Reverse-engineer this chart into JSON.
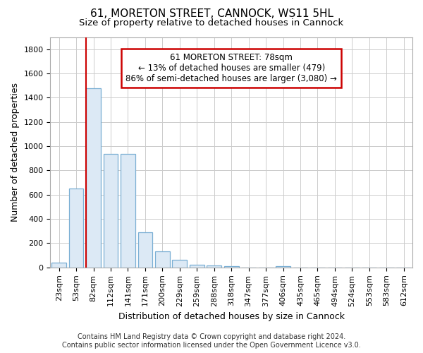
{
  "title_line1": "61, MORETON STREET, CANNOCK, WS11 5HL",
  "title_line2": "Size of property relative to detached houses in Cannock",
  "xlabel": "Distribution of detached houses by size in Cannock",
  "ylabel": "Number of detached properties",
  "bar_labels": [
    "23sqm",
    "53sqm",
    "82sqm",
    "112sqm",
    "141sqm",
    "171sqm",
    "200sqm",
    "229sqm",
    "259sqm",
    "288sqm",
    "318sqm",
    "347sqm",
    "377sqm",
    "406sqm",
    "435sqm",
    "465sqm",
    "494sqm",
    "524sqm",
    "553sqm",
    "583sqm",
    "612sqm"
  ],
  "bar_values": [
    40,
    652,
    1475,
    935,
    935,
    290,
    130,
    63,
    25,
    18,
    10,
    0,
    0,
    12,
    0,
    0,
    0,
    0,
    0,
    0,
    0
  ],
  "bar_color": "#dce9f5",
  "bar_edge_color": "#7aafd4",
  "vline_index": 2,
  "vline_color": "#cc0000",
  "annotation_line1": "61 MORETON STREET: 78sqm",
  "annotation_line2": "← 13% of detached houses are smaller (479)",
  "annotation_line3": "86% of semi-detached houses are larger (3,080) →",
  "annotation_box_color": "#ffffff",
  "annotation_border_color": "#cc0000",
  "ylim": [
    0,
    1900
  ],
  "yticks": [
    0,
    200,
    400,
    600,
    800,
    1000,
    1200,
    1400,
    1600,
    1800
  ],
  "footer_line1": "Contains HM Land Registry data © Crown copyright and database right 2024.",
  "footer_line2": "Contains public sector information licensed under the Open Government Licence v3.0.",
  "bg_color": "#ffffff",
  "plot_bg_color": "#ffffff",
  "grid_color": "#cccccc",
  "title_fontsize": 11,
  "subtitle_fontsize": 9.5,
  "axis_label_fontsize": 9,
  "tick_fontsize": 8,
  "footer_fontsize": 7,
  "bar_width": 0.85
}
